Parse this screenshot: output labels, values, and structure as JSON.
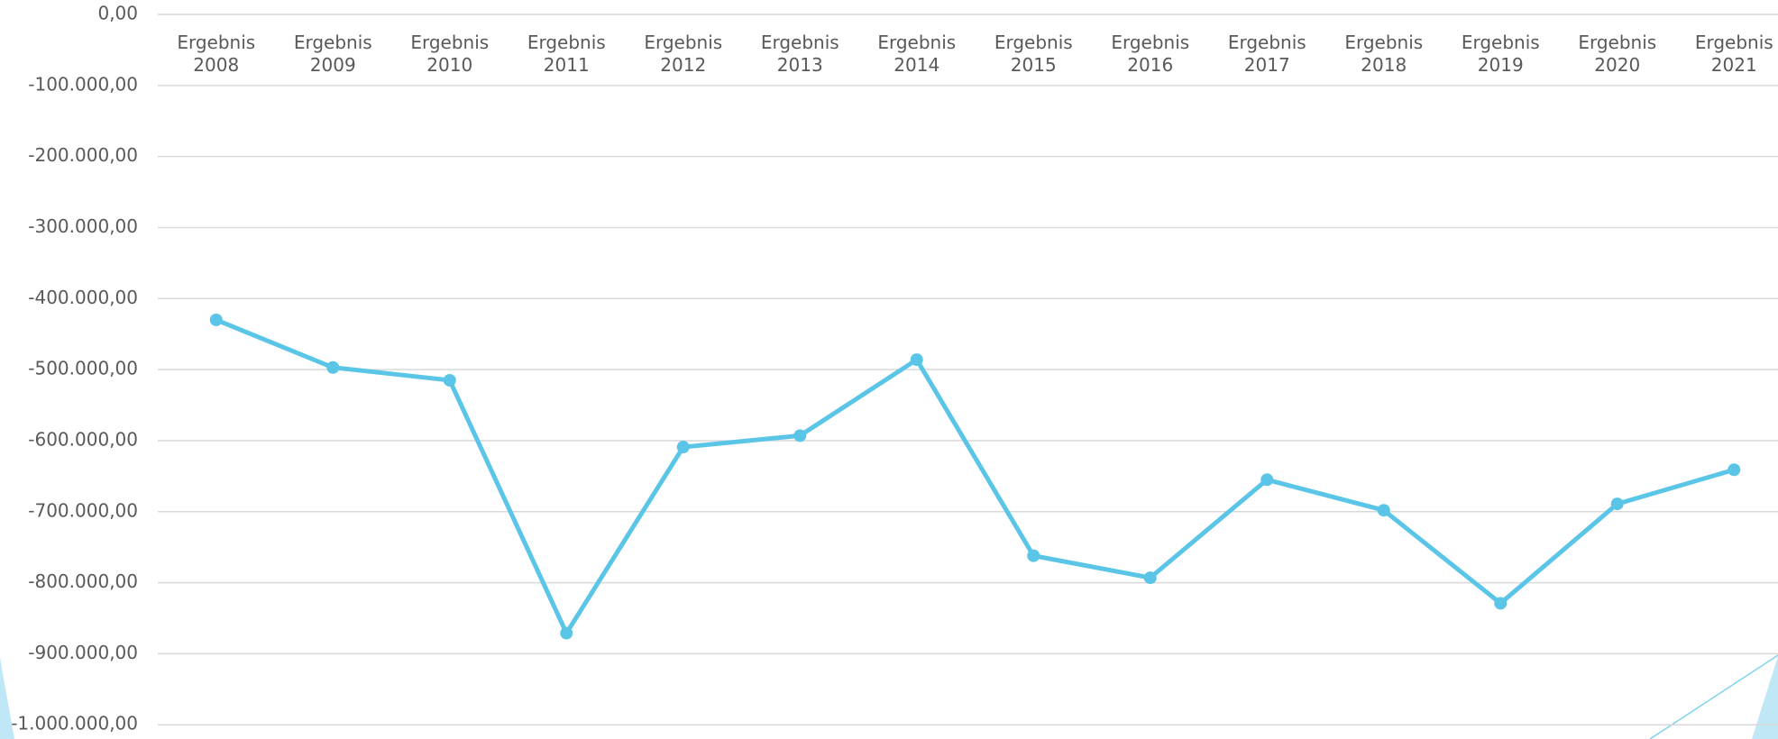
{
  "chart_data": {
    "type": "line",
    "categories": [
      "Ergebnis 2008",
      "Ergebnis 2009",
      "Ergebnis 2010",
      "Ergebnis 2011",
      "Ergebnis 2012",
      "Ergebnis 2013",
      "Ergebnis 2014",
      "Ergebnis 2015",
      "Ergebnis 2016",
      "Ergebnis 2017",
      "Ergebnis 2018",
      "Ergebnis 2019",
      "Ergebnis 2020",
      "Ergebnis 2021"
    ],
    "values": [
      -430000,
      -497000,
      -515000,
      -871000,
      -609000,
      -593000,
      -486000,
      -762000,
      -793000,
      -655000,
      -698000,
      -829000,
      -689000,
      -641000
    ],
    "color": "#5bc5e8",
    "ylim": [
      -1020000,
      0
    ],
    "yticks": [
      {
        "value": 0,
        "label": "0,00"
      },
      {
        "value": -100000,
        "label": "-100.000,00"
      },
      {
        "value": -200000,
        "label": "-200.000,00"
      },
      {
        "value": -300000,
        "label": "-300.000,00"
      },
      {
        "value": -400000,
        "label": "-400.000,00"
      },
      {
        "value": -500000,
        "label": "-500.000,00"
      },
      {
        "value": -600000,
        "label": "-600.000,00"
      },
      {
        "value": -700000,
        "label": "-700.000,00"
      },
      {
        "value": -800000,
        "label": "-800.000,00"
      },
      {
        "value": -900000,
        "label": "-900.000,00"
      },
      {
        "value": -1000000,
        "label": "-1.000.000,00"
      }
    ],
    "grid": true
  }
}
